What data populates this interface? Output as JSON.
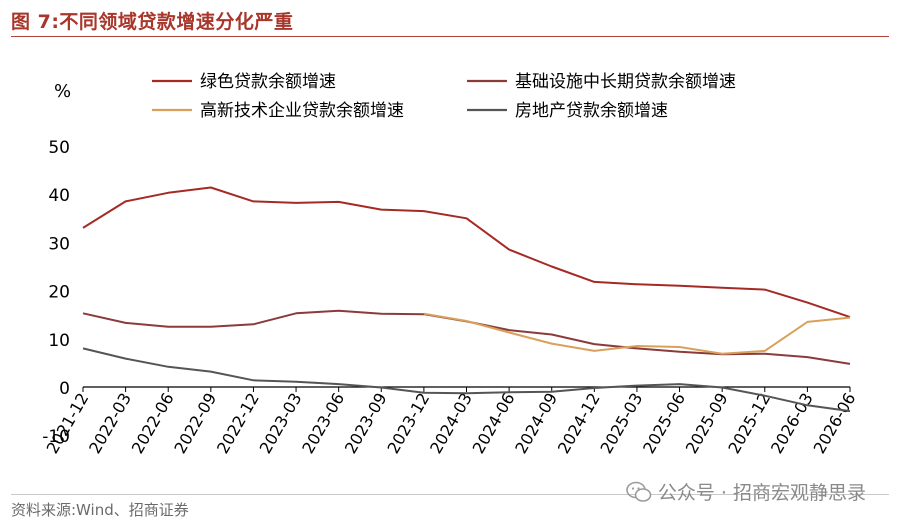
{
  "header": {
    "title": "图 7:不同领域贷款增速分化严重"
  },
  "footer": {
    "source": "资料来源:Wind、招商证券",
    "watermark": "公众号 · 招商宏观静思录"
  },
  "chart_data": {
    "type": "line",
    "ylabel": "%",
    "ylim": [
      -10,
      50
    ],
    "yticks": [
      -10,
      0,
      10,
      20,
      30,
      40,
      50
    ],
    "grid": false,
    "legend_position": "top",
    "x": [
      "2021-12",
      "2022-03",
      "2022-06",
      "2022-09",
      "2022-12",
      "2023-03",
      "2023-06",
      "2023-09",
      "2023-12",
      "2024-03",
      "2024-06",
      "2024-09",
      "2024-12",
      "2025-03",
      "2025-06",
      "2025-09",
      "2025-12",
      "2026-03",
      "2026-06"
    ],
    "series": [
      {
        "name": "绿色贷款余额增速",
        "color": "#a52a26",
        "values": [
          33,
          38.5,
          40.3,
          41.4,
          38.5,
          38.2,
          38.4,
          36.8,
          36.5,
          35.0,
          28.5,
          25.0,
          21.8,
          21.3,
          21.0,
          20.6,
          20.2,
          17.5,
          14.5
        ]
      },
      {
        "name": "基础设施中长期贷款余额增速",
        "color": "#8a3b3b",
        "values": [
          15.3,
          13.3,
          12.5,
          12.5,
          13.0,
          15.3,
          15.8,
          15.2,
          15.1,
          13.6,
          11.8,
          10.9,
          8.9,
          8.0,
          7.3,
          6.8,
          6.9,
          6.2,
          4.8
        ]
      },
      {
        "name": "高新技术企业贷款余额增速",
        "color": "#d9a05b",
        "values": [
          null,
          null,
          null,
          null,
          null,
          null,
          null,
          null,
          15.2,
          13.7,
          11.3,
          9.0,
          7.5,
          8.5,
          8.3,
          6.9,
          7.5,
          13.5,
          14.4
        ]
      },
      {
        "name": "房地产贷款余额增速",
        "color": "#555555",
        "values": [
          8.0,
          5.9,
          4.2,
          3.2,
          1.4,
          1.1,
          0.6,
          -0.1,
          -1.2,
          -1.3,
          -1.1,
          -1.0,
          -0.2,
          0.3,
          0.6,
          -0.1,
          -1.8,
          -3.8,
          -5.0
        ]
      }
    ]
  }
}
